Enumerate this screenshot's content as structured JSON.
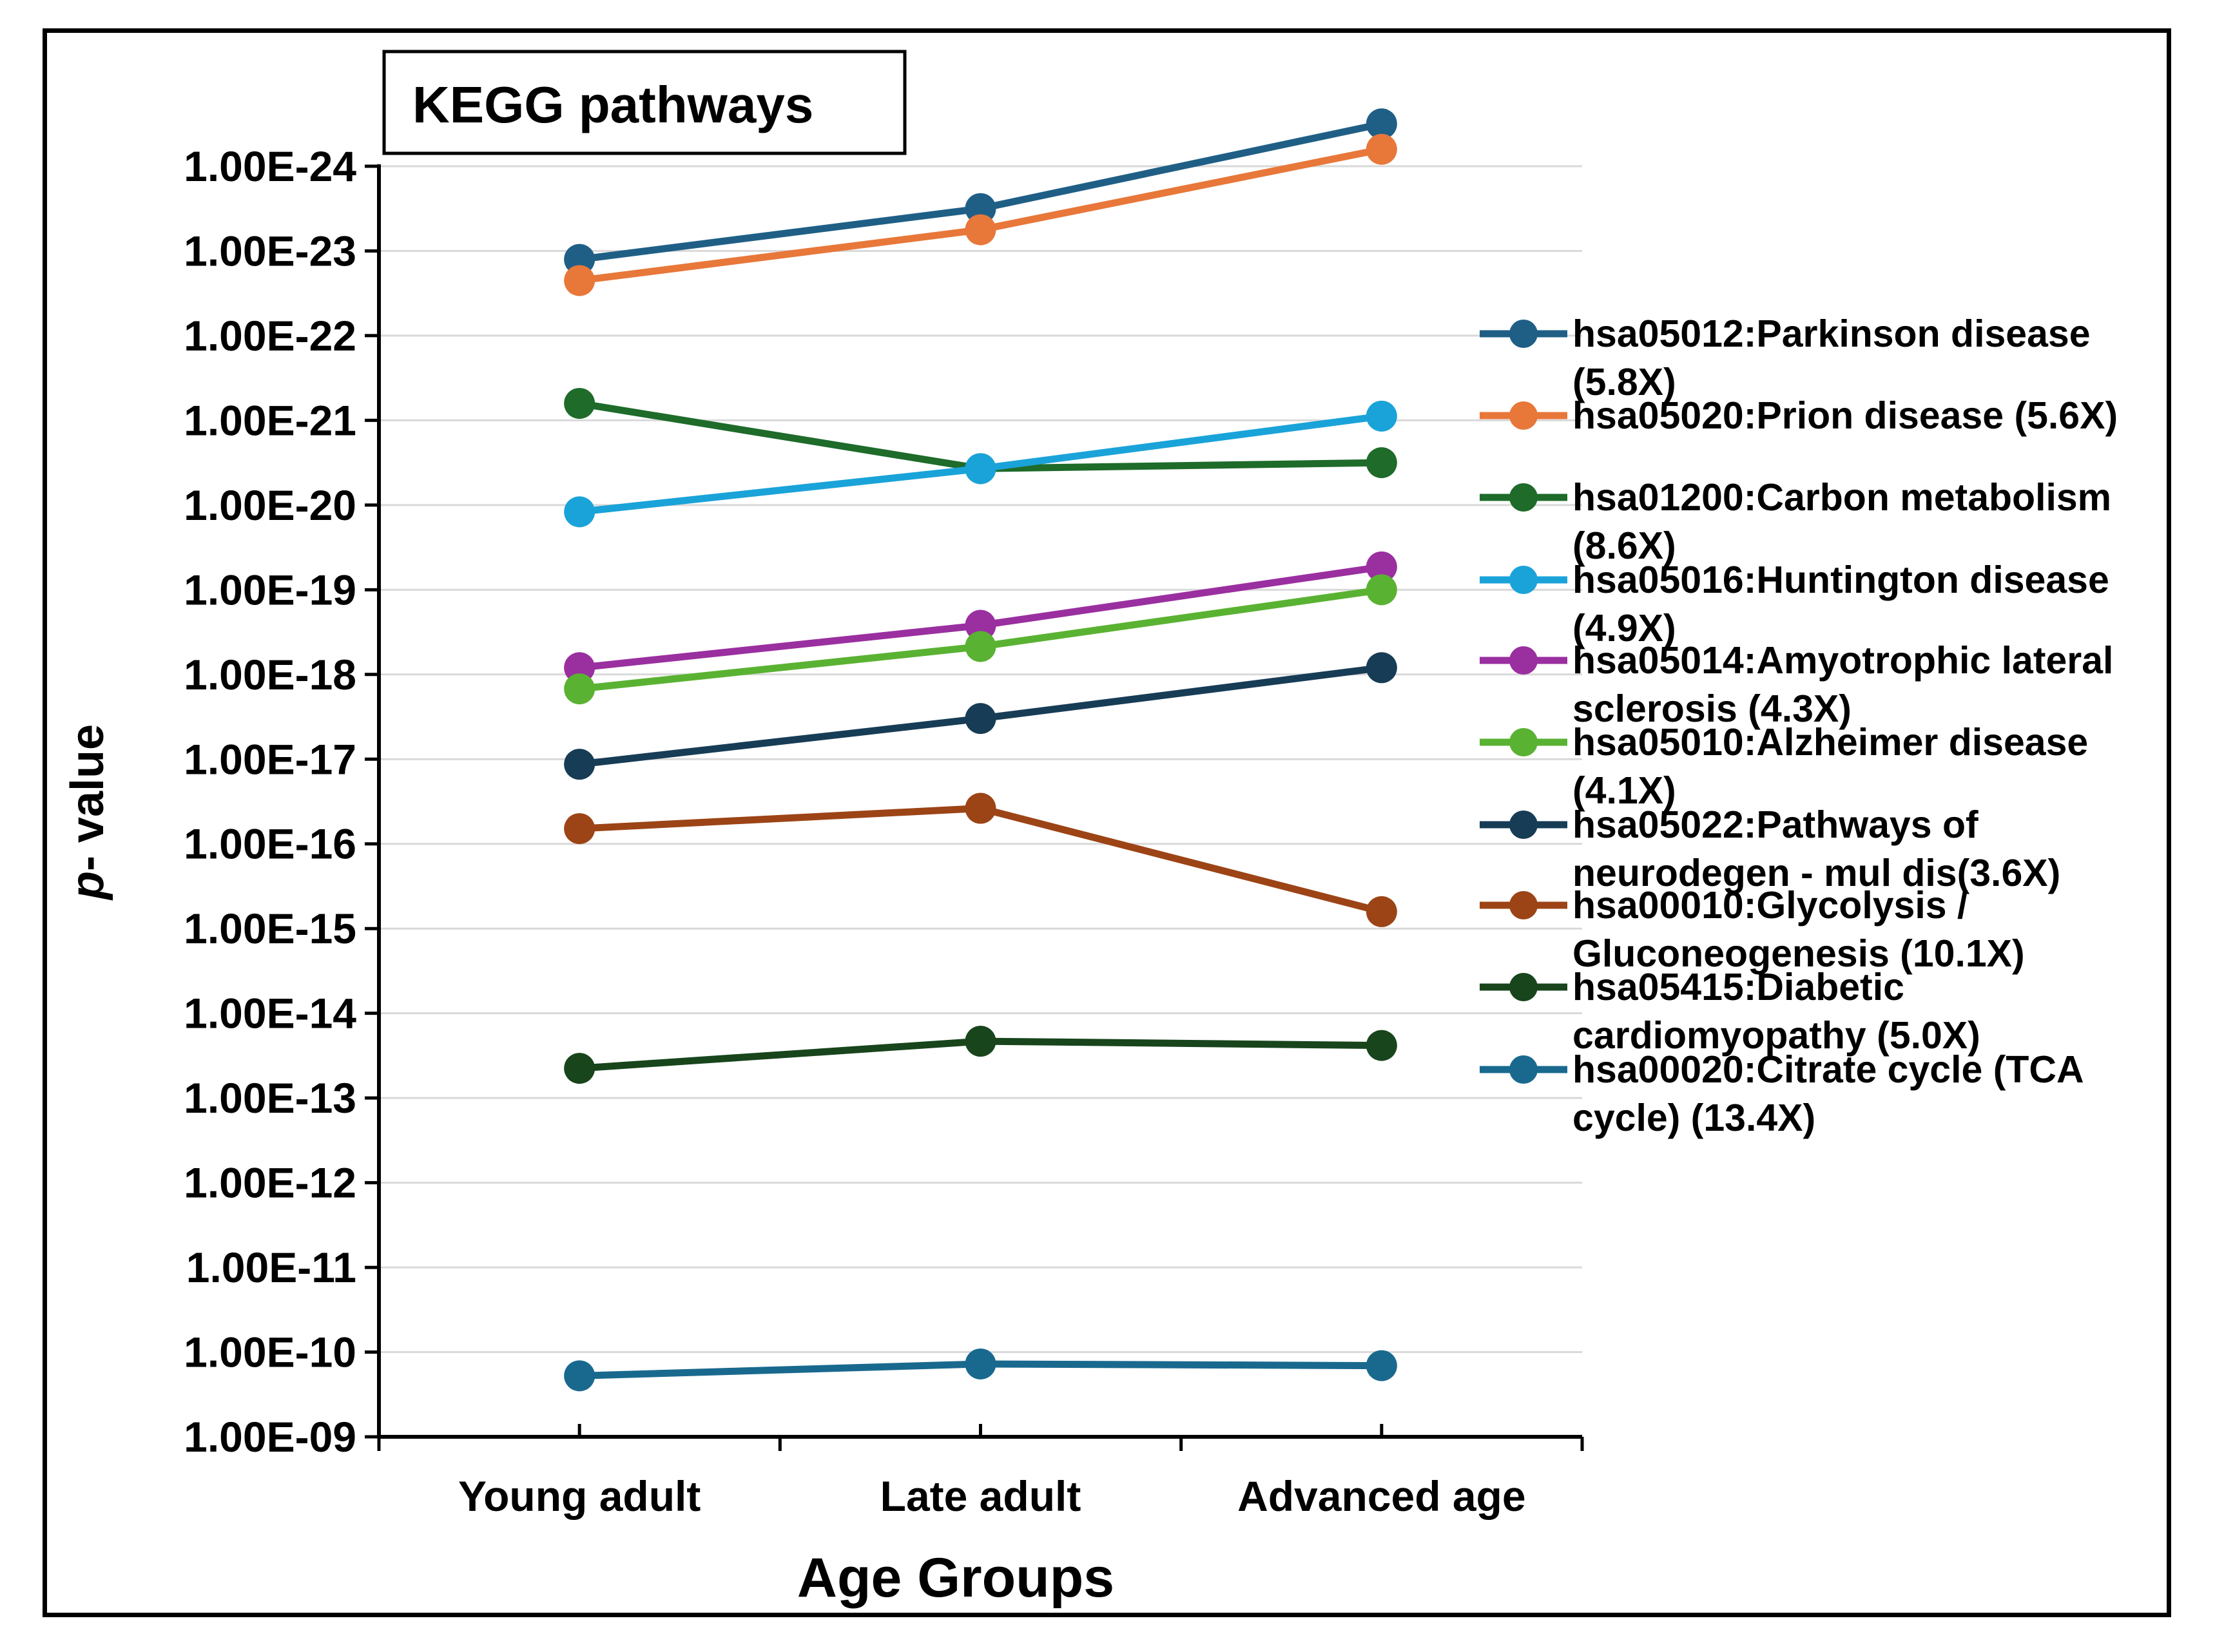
{
  "chart_data": {
    "type": "line",
    "title": "KEGG pathways",
    "xlabel": "Age Groups",
    "ylabel_prefix": "p",
    "ylabel_suffix": "- value",
    "yscale": "log",
    "y_reversed": true,
    "ylim_exponents": [
      -9,
      -24
    ],
    "grid": true,
    "legend_position": "right",
    "categories": [
      "Young adult",
      "Late adult",
      "Advanced age"
    ],
    "y_tick_labels": [
      "1.00E-24",
      "1.00E-23",
      "1.00E-22",
      "1.00E-21",
      "1.00E-20",
      "1.00E-19",
      "1.00E-18",
      "1.00E-17",
      "1.00E-16",
      "1.00E-15",
      "1.00E-14",
      "1.00E-13",
      "1.00E-12",
      "1.00E-11",
      "1.00E-10",
      "1.00E-09"
    ],
    "series": [
      {
        "name": "hsa05012:Parkinson disease (5.8X)",
        "legend_lines": [
          "hsa05012:Parkinson disease",
          "(5.8X)"
        ],
        "color": "#1f5f86",
        "neg_log10_p": [
          22.9,
          23.5,
          24.5
        ]
      },
      {
        "name": "hsa05020:Prion disease (5.6X)",
        "legend_lines": [
          "hsa05020:Prion disease (5.6X)"
        ],
        "color": "#e8773a",
        "neg_log10_p": [
          22.65,
          23.25,
          24.2
        ]
      },
      {
        "name": "hsa01200:Carbon metabolism (8.6X)",
        "legend_lines": [
          "hsa01200:Carbon metabolism",
          "(8.6X)"
        ],
        "color": "#1e6b2a",
        "neg_log10_p": [
          21.2,
          20.43,
          20.5
        ]
      },
      {
        "name": "hsa05016:Huntington disease (4.9X)",
        "legend_lines": [
          "hsa05016:Huntington disease",
          "(4.9X)"
        ],
        "color": "#1aa3d9",
        "neg_log10_p": [
          19.92,
          20.43,
          21.05
        ]
      },
      {
        "name": "hsa05014:Amyotrophic lateral sclerosis (4.3X)",
        "legend_lines": [
          "hsa05014:Amyotrophic lateral",
          "sclerosis (4.3X)"
        ],
        "color": "#9a2fa0",
        "neg_log10_p": [
          18.08,
          18.58,
          19.27
        ]
      },
      {
        "name": "hsa05010:Alzheimer disease (4.1X)",
        "legend_lines": [
          "hsa05010:Alzheimer disease",
          "(4.1X)"
        ],
        "color": "#5ab232",
        "neg_log10_p": [
          17.83,
          18.33,
          19.0
        ]
      },
      {
        "name": "hsa05022:Pathways of neurodegen - mul dis(3.6X)",
        "legend_lines": [
          "hsa05022:Pathways of",
          "neurodegen - mul dis(3.6X)"
        ],
        "color": "#173c56",
        "neg_log10_p": [
          16.94,
          17.48,
          18.08
        ]
      },
      {
        "name": "hsa00010:Glycolysis / Gluconeogenesis (10.1X)",
        "legend_lines": [
          "hsa00010:Glycolysis /",
          "Gluconeogenesis (10.1X)"
        ],
        "color": "#9c4416",
        "neg_log10_p": [
          16.18,
          16.42,
          15.2
        ]
      },
      {
        "name": "hsa05415:Diabetic cardiomyopathy (5.0X)",
        "legend_lines": [
          "hsa05415:Diabetic",
          "cardiomyopathy (5.0X)"
        ],
        "color": "#18451c",
        "neg_log10_p": [
          13.35,
          13.67,
          13.62
        ]
      },
      {
        "name": "hsa00020:Citrate cycle (TCA cycle) (13.4X)",
        "legend_lines": [
          "hsa00020:Citrate cycle (TCA",
          "cycle) (13.4X)"
        ],
        "color": "#19698e",
        "neg_log10_p": [
          9.72,
          9.86,
          9.84
        ]
      }
    ]
  }
}
